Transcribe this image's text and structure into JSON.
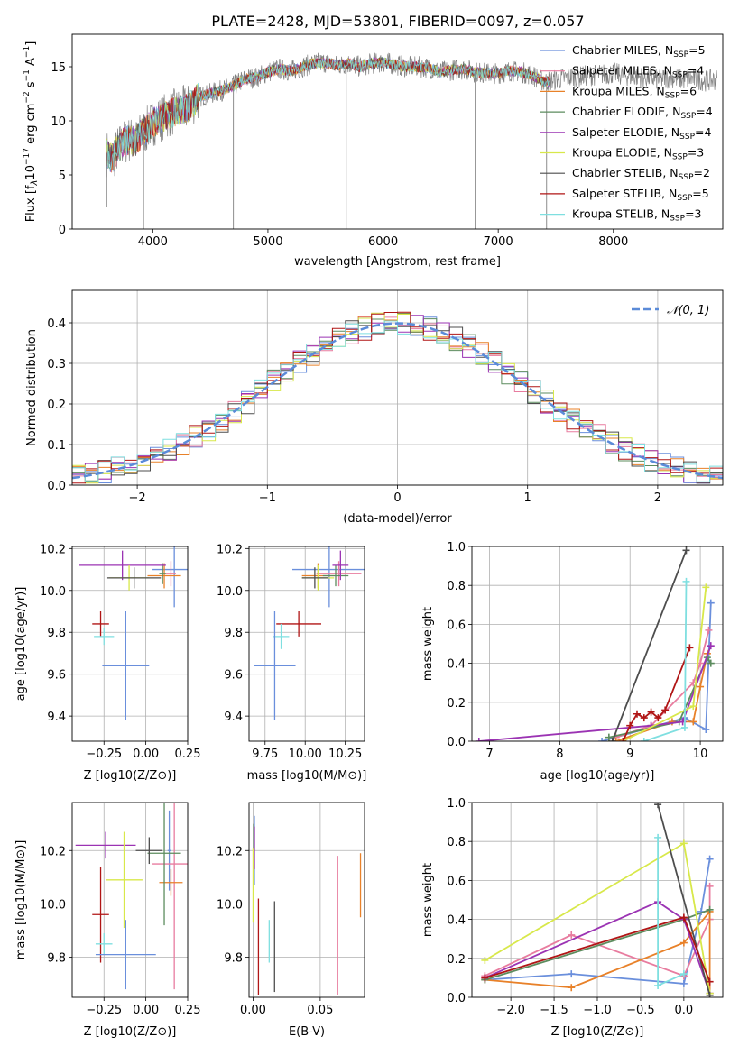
{
  "figure_title": "PLATE=2428, MJD=53801, FIBERID=0097, z=0.057",
  "models": [
    {
      "name": "Chabrier MILES",
      "nssp": "5",
      "color": "#6a8fdc"
    },
    {
      "name": "Salpeter MILES",
      "nssp": "4",
      "color": "#e87c9f"
    },
    {
      "name": "Kroupa MILES",
      "nssp": "6",
      "color": "#e88129"
    },
    {
      "name": "Chabrier ELODIE",
      "nssp": "4",
      "color": "#5c8c5e"
    },
    {
      "name": "Salpeter ELODIE",
      "nssp": "4",
      "color": "#9b33b3"
    },
    {
      "name": "Kroupa ELODIE",
      "nssp": "3",
      "color": "#d8e84a"
    },
    {
      "name": "Chabrier STELIB",
      "nssp": "2",
      "color": "#4d4d4d"
    },
    {
      "name": "Salpeter STELIB",
      "nssp": "5",
      "color": "#b01515"
    },
    {
      "name": "Kroupa STELIB",
      "nssp": "3",
      "color": "#7fdfe0"
    }
  ],
  "chart_data": [
    {
      "id": "spectrum",
      "type": "line",
      "xlabel": "wavelength [Angstrom, rest frame]",
      "ylabel": "Flux [f_λ 10^-17 erg cm^-2 s^-1 A^-1]",
      "xlim": [
        3300,
        8950
      ],
      "ylim": [
        0,
        18
      ],
      "xticks": [
        "4000",
        "5000",
        "6000",
        "7000",
        "8000"
      ],
      "yticks": [
        "0",
        "5",
        "10",
        "15"
      ],
      "grid": false,
      "legend": "right",
      "data_color": "#808080",
      "data_points": [
        [
          3600,
          7.0
        ],
        [
          3650,
          6.5
        ],
        [
          3700,
          7.5
        ],
        [
          3750,
          8.0
        ],
        [
          3800,
          8.3
        ],
        [
          3850,
          8.0
        ],
        [
          3900,
          8.8
        ],
        [
          3950,
          9.2
        ],
        [
          4000,
          9.8
        ],
        [
          4100,
          10.4
        ],
        [
          4200,
          10.9
        ],
        [
          4300,
          11.2
        ],
        [
          4400,
          12.2
        ],
        [
          4500,
          12.5
        ],
        [
          4600,
          12.8
        ],
        [
          4700,
          13.2
        ],
        [
          4800,
          13.9
        ],
        [
          4900,
          14.0
        ],
        [
          5000,
          14.5
        ],
        [
          5100,
          14.8
        ],
        [
          5200,
          14.6
        ],
        [
          5300,
          15.0
        ],
        [
          5400,
          15.3
        ],
        [
          5500,
          15.4
        ],
        [
          5600,
          15.1
        ],
        [
          5700,
          15.3
        ],
        [
          5800,
          15.0
        ],
        [
          5900,
          15.3
        ],
        [
          6000,
          15.4
        ],
        [
          6100,
          15.2
        ],
        [
          6200,
          15.0
        ],
        [
          6300,
          15.0
        ],
        [
          6400,
          14.9
        ],
        [
          6500,
          14.5
        ],
        [
          6600,
          14.7
        ],
        [
          6700,
          14.8
        ],
        [
          6800,
          14.5
        ],
        [
          6900,
          14.4
        ],
        [
          7000,
          14.4
        ],
        [
          7100,
          14.6
        ],
        [
          7200,
          14.5
        ],
        [
          7300,
          14.2
        ],
        [
          7400,
          13.6
        ],
        [
          7500,
          13.8
        ],
        [
          7600,
          14.0
        ],
        [
          7700,
          14.1
        ],
        [
          7800,
          14.2
        ],
        [
          7900,
          14.3
        ],
        [
          8000,
          14.4
        ],
        [
          8100,
          14.2
        ],
        [
          8200,
          14.1
        ],
        [
          8300,
          14.0
        ],
        [
          8400,
          13.8
        ],
        [
          8500,
          14.0
        ],
        [
          8600,
          13.8
        ],
        [
          8700,
          13.9
        ],
        [
          8800,
          13.7
        ],
        [
          8900,
          13.8
        ]
      ],
      "model_range": [
        3600,
        7450
      ],
      "dropouts": [
        [
          3600,
          2.0
        ],
        [
          3920,
          0
        ],
        [
          4700,
          0
        ],
        [
          5680,
          0
        ],
        [
          6800,
          0
        ],
        [
          7420,
          0
        ]
      ]
    },
    {
      "id": "residuals",
      "type": "line",
      "xlabel": "(data-model)/error",
      "ylabel": "Normed distribution",
      "xlim": [
        -2.5,
        2.5
      ],
      "ylim": [
        0,
        0.48
      ],
      "xticks": [
        -2,
        -1,
        0,
        1,
        2
      ],
      "xtick_labels": [
        "−2",
        "−1",
        "0",
        "1",
        "2"
      ],
      "yticks": [
        "0.0",
        "0.1",
        "0.2",
        "0.3",
        "0.4"
      ],
      "grid": true,
      "legend": "top-right",
      "legend_label": "𝒩(0, 1)",
      "gaussian": {
        "mean": 0,
        "sigma": 1,
        "color": "#5b8bd8"
      },
      "bin_width": 0.1
    },
    {
      "id": "age-vs-Z",
      "type": "scatter",
      "xlabel": "Z [log10(Z/Z⊙)]",
      "ylabel": "age [log10(age/yr)]",
      "xlim": [
        -0.44,
        0.25
      ],
      "ylim": [
        9.28,
        10.21
      ],
      "xticks": [
        -0.25,
        0.0,
        0.25
      ],
      "xtick_labels": [
        "−0.25",
        "0.00",
        "0.25"
      ],
      "yticks": [
        9.4,
        9.6,
        9.8,
        10.0,
        10.2
      ],
      "ytick_labels": [
        "9.4",
        "9.6",
        "9.8",
        "10.0",
        "10.2"
      ],
      "grid": true,
      "points": [
        {
          "x": 0.17,
          "y": 10.1,
          "xerr": 0.13,
          "yerr": 0.18
        },
        {
          "x": 0.15,
          "y": 10.08,
          "xerr": 0.03,
          "yerr": 0.06
        },
        {
          "x": 0.11,
          "y": 10.07,
          "xerr": 0.1,
          "yerr": 0.06
        },
        {
          "x": 0.1,
          "y": 10.08,
          "xerr": 0.02,
          "yerr": 0.05
        },
        {
          "x": -0.14,
          "y": 10.12,
          "xerr": 0.26,
          "yerr": 0.07
        },
        {
          "x": -0.1,
          "y": 10.06,
          "xerr": 0.12,
          "yerr": 0.06
        },
        {
          "x": -0.07,
          "y": 10.06,
          "xerr": 0.16,
          "yerr": 0.05
        },
        {
          "x": -0.27,
          "y": 9.84,
          "xerr": 0.05,
          "yerr": 0.06
        },
        {
          "x": -0.25,
          "y": 9.78,
          "xerr": 0.06,
          "yerr": 0.04
        },
        {
          "x": -0.12,
          "y": 9.64,
          "xerr": 0.14,
          "yerr": 0.26
        }
      ]
    },
    {
      "id": "age-vs-mass",
      "type": "scatter",
      "xlabel": "mass [log10(M/M⊙)]",
      "ylabel": "",
      "xlim": [
        9.65,
        10.37
      ],
      "ylim": [
        9.28,
        10.21
      ],
      "xticks": [
        9.75,
        10.0,
        10.25
      ],
      "xtick_labels": [
        "9.75",
        "10.00",
        "10.25"
      ],
      "yticks": [
        9.4,
        9.6,
        9.8,
        10.0,
        10.2
      ],
      "ytick_labels": [
        "9.4",
        "9.6",
        "9.8",
        "10.0",
        "10.2"
      ],
      "grid": true,
      "points": [
        {
          "x": 10.15,
          "y": 10.1,
          "xerr": 0.23,
          "yerr": 0.18
        },
        {
          "x": 10.21,
          "y": 10.08,
          "xerr": 0.14,
          "yerr": 0.06
        },
        {
          "x": 10.08,
          "y": 10.07,
          "xerr": 0.1,
          "yerr": 0.06
        },
        {
          "x": 10.19,
          "y": 10.07,
          "xerr": 0.08,
          "yerr": 0.05
        },
        {
          "x": 10.22,
          "y": 10.12,
          "xerr": 0.05,
          "yerr": 0.07
        },
        {
          "x": 10.08,
          "y": 10.06,
          "xerr": 0.1,
          "yerr": 0.06
        },
        {
          "x": 10.06,
          "y": 10.06,
          "xerr": 0.08,
          "yerr": 0.05
        },
        {
          "x": 9.96,
          "y": 9.84,
          "xerr": 0.14,
          "yerr": 0.06
        },
        {
          "x": 9.85,
          "y": 9.78,
          "xerr": 0.05,
          "yerr": 0.06
        },
        {
          "x": 9.81,
          "y": 9.64,
          "xerr": 0.13,
          "yerr": 0.26
        }
      ]
    },
    {
      "id": "weight-vs-age",
      "type": "line",
      "xlabel": "age [log10(age/yr)]",
      "ylabel": "mass weight",
      "xlim": [
        6.75,
        10.32
      ],
      "ylim": [
        0,
        1
      ],
      "xticks": [
        7,
        8,
        9,
        10
      ],
      "xtick_labels": [
        "7",
        "8",
        "9",
        "10"
      ],
      "yticks": [
        0,
        0.2,
        0.4,
        0.6,
        0.8,
        1.0
      ],
      "ytick_labels": [
        "0.0",
        "0.2",
        "0.4",
        "0.6",
        "0.8",
        "1.0"
      ],
      "grid": true,
      "series": [
        {
          "x": [
            8.6,
            9.78,
            10.08,
            10.15
          ],
          "y": [
            0.0,
            0.12,
            0.06,
            0.71
          ]
        },
        {
          "x": [
            8.8,
            9.3,
            9.9,
            10.0,
            10.12
          ],
          "y": [
            0.02,
            0.08,
            0.3,
            0.4,
            0.57
          ]
        },
        {
          "x": [
            8.8,
            9.6,
            9.9,
            10.0,
            10.1
          ],
          "y": [
            0.0,
            0.1,
            0.1,
            0.28,
            0.45
          ]
        },
        {
          "x": [
            8.7,
            9.7,
            10.1,
            10.15
          ],
          "y": [
            0.02,
            0.1,
            0.43,
            0.4
          ]
        },
        {
          "x": [
            6.85,
            9.3,
            9.75,
            10.15
          ],
          "y": [
            0.0,
            0.08,
            0.1,
            0.49
          ]
        },
        {
          "x": [
            8.9,
            9.9,
            10.08
          ],
          "y": [
            0.0,
            0.18,
            0.79
          ]
        },
        {
          "x": [
            8.75,
            9.8
          ],
          "y": [
            0.0,
            0.98
          ]
        },
        {
          "x": [
            8.9,
            9.0,
            9.1,
            9.2,
            9.3,
            9.4,
            9.5,
            9.85
          ],
          "y": [
            0.0,
            0.08,
            0.14,
            0.12,
            0.15,
            0.12,
            0.16,
            0.48
          ]
        },
        {
          "x": [
            9.2,
            9.78,
            9.8
          ],
          "y": [
            0.0,
            0.07,
            0.82
          ]
        }
      ]
    },
    {
      "id": "mass-vs-Z",
      "type": "scatter",
      "xlabel": "Z [log10(Z/Z⊙)]",
      "ylabel": "mass [log10(M/M⊙)]",
      "xlim": [
        -0.44,
        0.25
      ],
      "ylim": [
        9.65,
        10.38
      ],
      "xticks": [
        -0.25,
        0.0,
        0.25
      ],
      "xtick_labels": [
        "−0.25",
        "0.00",
        "0.25"
      ],
      "yticks": [
        9.8,
        10.0,
        10.2
      ],
      "ytick_labels": [
        "9.8",
        "10.0",
        "10.2"
      ],
      "grid": true,
      "points": [
        {
          "x": 0.14,
          "y": 10.2,
          "xerr": 0.01,
          "yerr": 0.15
        },
        {
          "x": 0.17,
          "y": 10.15,
          "xerr": 0.13,
          "yerr": 0.47
        },
        {
          "x": 0.15,
          "y": 10.08,
          "xerr": 0.07,
          "yerr": 0.05
        },
        {
          "x": 0.11,
          "y": 10.19,
          "xerr": 0.1,
          "yerr": 0.27
        },
        {
          "x": -0.24,
          "y": 10.22,
          "xerr": 0.18,
          "yerr": 0.05
        },
        {
          "x": -0.13,
          "y": 10.09,
          "xerr": 0.11,
          "yerr": 0.18
        },
        {
          "x": 0.02,
          "y": 10.2,
          "xerr": 0.08,
          "yerr": 0.05
        },
        {
          "x": -0.27,
          "y": 9.96,
          "xerr": 0.05,
          "yerr": 0.18
        },
        {
          "x": -0.25,
          "y": 9.85,
          "xerr": 0.05,
          "yerr": 0.04
        },
        {
          "x": -0.12,
          "y": 9.81,
          "xerr": 0.18,
          "yerr": 0.13
        }
      ]
    },
    {
      "id": "mass-vs-ebv",
      "type": "scatter",
      "xlabel": "E(B-V)",
      "ylabel": "",
      "xlim": [
        -0.003,
        0.083
      ],
      "ylim": [
        9.65,
        10.38
      ],
      "xticks": [
        0.0,
        0.05
      ],
      "xtick_labels": [
        "0.00",
        "0.05"
      ],
      "yticks": [
        9.8,
        10.0,
        10.2
      ],
      "ytick_labels": [
        "9.8",
        "10.0",
        "10.2"
      ],
      "grid": true,
      "points": [
        {
          "x": 0.001,
          "y": 10.2,
          "xerr": 0,
          "yerr": 0.13
        },
        {
          "x": 0.063,
          "y": 9.92,
          "xerr": 0,
          "yerr": 0.26
        },
        {
          "x": 0.08,
          "y": 10.07,
          "xerr": 0,
          "yerr": 0.12
        },
        {
          "x": 0.0005,
          "y": 10.18,
          "xerr": 0,
          "yerr": 0.12
        },
        {
          "x": 0.001,
          "y": 10.21,
          "xerr": 0,
          "yerr": 0.08
        },
        {
          "x": 0.0,
          "y": 10.07,
          "xerr": 0,
          "yerr": 0.14
        },
        {
          "x": 0.016,
          "y": 9.84,
          "xerr": 0,
          "yerr": 0.17
        },
        {
          "x": 0.004,
          "y": 9.84,
          "xerr": 0,
          "yerr": 0.18
        },
        {
          "x": 0.012,
          "y": 9.86,
          "xerr": 0,
          "yerr": 0.08
        }
      ]
    },
    {
      "id": "weight-vs-Z",
      "type": "line",
      "xlabel": "Z [log10(Z/Z⊙)]",
      "ylabel": "mass weight",
      "xlim": [
        -2.45,
        0.45
      ],
      "ylim": [
        0,
        1
      ],
      "xticks": [
        -2.0,
        -1.5,
        -1.0,
        -0.5,
        0.0
      ],
      "xtick_labels": [
        "−2.0",
        "−1.5",
        "−1.0",
        "−0.5",
        "0.0"
      ],
      "yticks": [
        0,
        0.2,
        0.4,
        0.6,
        0.8,
        1.0
      ],
      "ytick_labels": [
        "0.0",
        "0.2",
        "0.4",
        "0.6",
        "0.8",
        "1.0"
      ],
      "grid": true,
      "series": [
        {
          "x": [
            -2.3,
            -1.3,
            0.0,
            0.2,
            0.3
          ],
          "y": [
            0.09,
            0.12,
            0.07,
            0.44,
            0.71
          ]
        },
        {
          "x": [
            -2.3,
            -1.3,
            0.0,
            0.3,
            0.3
          ],
          "y": [
            0.11,
            0.32,
            0.11,
            0.4,
            0.57
          ]
        },
        {
          "x": [
            -2.3,
            -1.3,
            0.0,
            0.3,
            0.3
          ],
          "y": [
            0.09,
            0.05,
            0.28,
            0.44,
            0.02
          ]
        },
        {
          "x": [
            -2.3,
            0.0,
            0.3
          ],
          "y": [
            0.09,
            0.4,
            0.45
          ]
        },
        {
          "x": [
            -2.3,
            -0.3,
            0.0,
            0.3
          ],
          "y": [
            0.1,
            0.49,
            0.4,
            0.02
          ]
        },
        {
          "x": [
            -2.3,
            0.0,
            0.3
          ],
          "y": [
            0.19,
            0.79,
            0.02
          ]
        },
        {
          "x": [
            -0.3,
            0.3
          ],
          "y": [
            0.99,
            0.01
          ]
        },
        {
          "x": [
            -2.3,
            0.0,
            0.3
          ],
          "y": [
            0.1,
            0.41,
            0.08
          ]
        },
        {
          "x": [
            -0.3,
            -0.3,
            0.0
          ],
          "y": [
            0.82,
            0.06,
            0.12
          ]
        }
      ]
    }
  ]
}
